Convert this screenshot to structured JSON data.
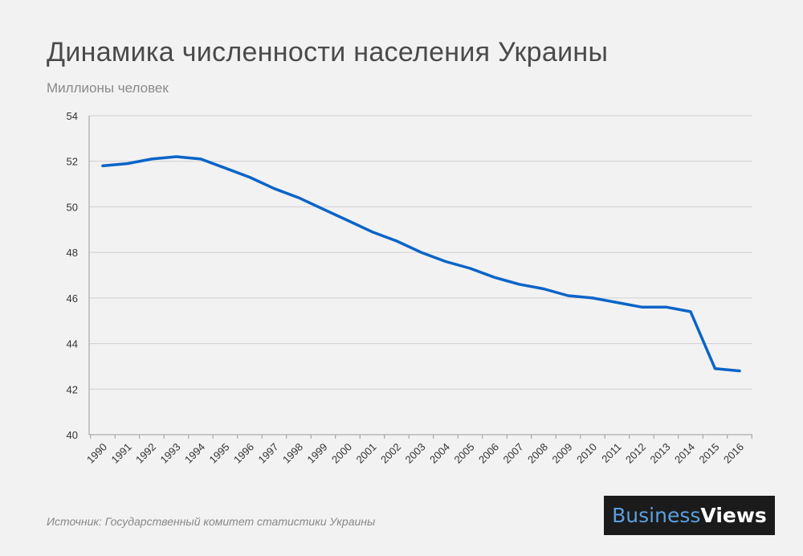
{
  "header": {
    "title": "Динамика численности населения Украины",
    "subtitle": "Миллионы человек"
  },
  "footer": {
    "source": "Источник:  Государственный комитет статистики Украины",
    "logo_part1": "Business",
    "logo_part2": "Views"
  },
  "colors": {
    "line": "#0a64c8",
    "grid": "#d0d0d0",
    "background": "#f2f2f2"
  },
  "chart_data": {
    "type": "line",
    "title": "Динамика численности населения Украины",
    "ylabel": "Миллионы человек",
    "xlabel": "",
    "grid": true,
    "ylim": [
      40,
      54
    ],
    "yticks": [
      40,
      42,
      44,
      46,
      48,
      50,
      52,
      54
    ],
    "x": [
      "1990",
      "1991",
      "1992",
      "1993",
      "1994",
      "1995",
      "1996",
      "1997",
      "1998",
      "1999",
      "2000",
      "2001",
      "2002",
      "2003",
      "2004",
      "2005",
      "2006",
      "2007",
      "2008",
      "2009",
      "2010",
      "2011",
      "2012",
      "2013",
      "2014",
      "2015",
      "2016"
    ],
    "series": [
      {
        "values": [
          51.8,
          51.9,
          52.1,
          52.2,
          52.1,
          51.7,
          51.3,
          50.8,
          50.4,
          49.9,
          49.4,
          48.9,
          48.5,
          48.0,
          47.6,
          47.3,
          46.9,
          46.6,
          46.4,
          46.1,
          46.0,
          45.8,
          45.6,
          45.6,
          45.4,
          42.9,
          42.8
        ]
      }
    ]
  }
}
